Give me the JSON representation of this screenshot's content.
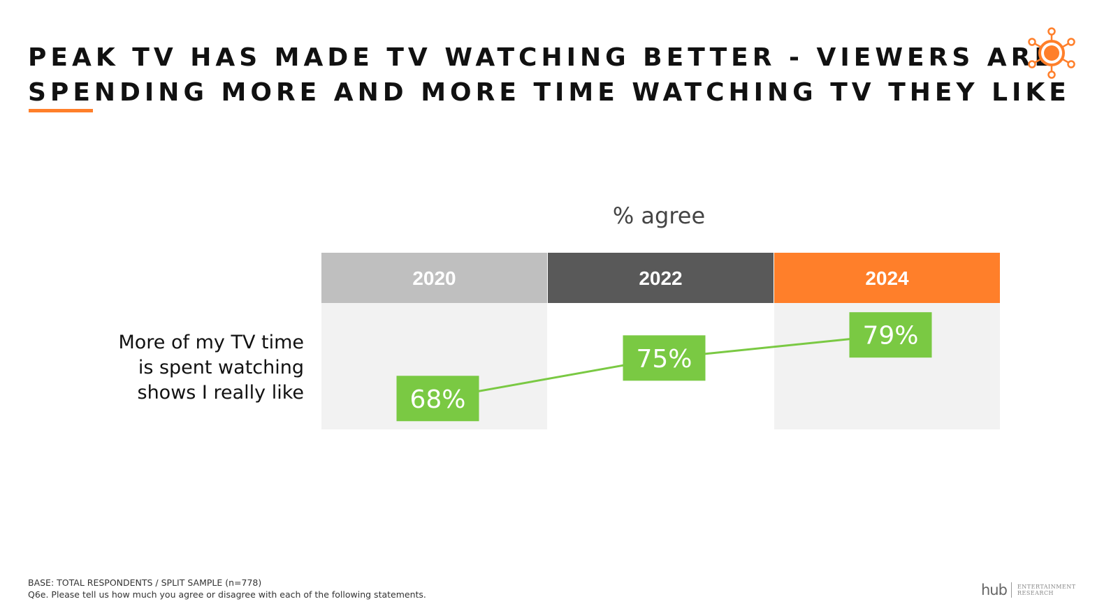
{
  "title": {
    "line1": "PEAK TV HAS MADE TV WATCHING BETTER - VIEWERS ARE",
    "line2": "SPENDING MORE AND MORE TIME WATCHING TV THEY LIKE"
  },
  "colors": {
    "accent_orange": "#ff7f2a",
    "header_2020": "#bfbfbf",
    "header_2022": "#595959",
    "header_2024": "#ff7f2a",
    "cell_shaded": "#f2f2f2",
    "line_green": "#7ac943",
    "label_green": "#7ac943"
  },
  "logo": {
    "icon": "sun-network-icon"
  },
  "chart_data": {
    "type": "line",
    "title": "% agree",
    "row_label_lines": [
      "More of my TV time",
      "is spent watching",
      "shows I really like"
    ],
    "categories": [
      "2020",
      "2022",
      "2024"
    ],
    "series": [
      {
        "values": [
          68,
          75,
          79
        ],
        "labels": [
          "68%",
          "75%",
          "79%"
        ]
      }
    ],
    "ylim": [
      60,
      85
    ],
    "grid": false,
    "legend": "none"
  },
  "footnote": {
    "line1": "BASE: TOTAL RESPONDENTS / SPLIT SAMPLE (n=778)",
    "line2": "Q6e. Please tell us how much you agree or disagree with each of the following statements."
  },
  "brand": {
    "name": "hub",
    "sub_line1": "ENTERTAINMENT",
    "sub_line2": "RESEARCH"
  }
}
